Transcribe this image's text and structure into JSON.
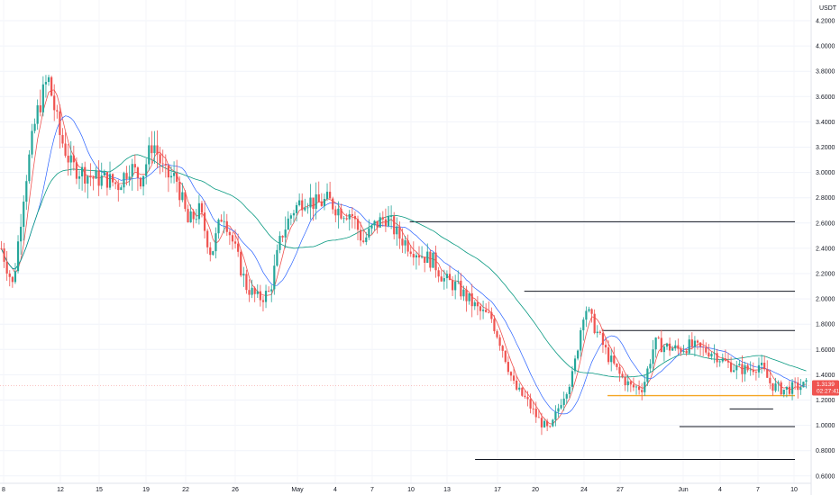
{
  "chart_data": {
    "type": "candlestick",
    "currency_label": "USDT",
    "y_axis": {
      "ticks": [
        "4.2000",
        "4.0000",
        "3.8000",
        "3.6000",
        "3.4000",
        "3.2000",
        "3.0000",
        "2.8000",
        "2.6000",
        "2.4000",
        "2.2000",
        "2.0000",
        "1.8000",
        "1.6000",
        "1.4000",
        "1.2000",
        "1.0000",
        "0.8000",
        "0.6000"
      ],
      "range": [
        0.6,
        4.2
      ]
    },
    "x_axis": {
      "ticks": [
        "8",
        "12",
        "15",
        "19",
        "22",
        "26",
        "May",
        "4",
        "7",
        "10",
        "13",
        "17",
        "20",
        "24",
        "27",
        "Jun",
        "4",
        "7",
        "10"
      ]
    },
    "current_price": {
      "value": 1.3139,
      "label": "1.3139",
      "countdown": "02:27:41"
    },
    "horizontal_levels": [
      {
        "value": 2.61,
        "from_day": 43.3,
        "to_day": 84
      },
      {
        "value": 2.06,
        "from_day": 55.4,
        "to_day": 84
      },
      {
        "value": 1.75,
        "from_day": 63.6,
        "to_day": 84
      },
      {
        "value": 1.13,
        "from_day": 77.1,
        "to_day": 81.7
      },
      {
        "value": 0.99,
        "from_day": 71.8,
        "to_day": 84
      },
      {
        "value": 0.73,
        "from_day": 50.2,
        "to_day": 84
      }
    ],
    "support_level": {
      "value": 1.235,
      "from_day": 64.2,
      "to_day": 84
    },
    "price_path": [
      [
        0,
        2.4
      ],
      [
        1,
        2.1
      ],
      [
        2,
        2.9
      ],
      [
        3,
        3.45
      ],
      [
        4,
        3.75
      ],
      [
        5,
        3.3
      ],
      [
        6,
        3.05
      ],
      [
        7,
        3.0
      ],
      [
        8,
        2.95
      ],
      [
        9,
        2.95
      ],
      [
        10,
        2.9
      ],
      [
        11,
        3.05
      ],
      [
        12,
        2.95
      ],
      [
        13,
        3.25
      ],
      [
        14,
        2.98
      ],
      [
        15,
        2.95
      ],
      [
        16,
        2.6
      ],
      [
        17,
        2.7
      ],
      [
        18,
        2.35
      ],
      [
        19,
        2.7
      ],
      [
        20,
        2.4
      ],
      [
        21,
        2.1
      ],
      [
        22,
        2.0
      ],
      [
        23,
        2.05
      ],
      [
        24,
        2.5
      ],
      [
        25,
        2.7
      ],
      [
        26,
        2.8
      ],
      [
        27,
        2.75
      ],
      [
        28,
        2.78
      ],
      [
        29,
        2.7
      ],
      [
        30,
        2.68
      ],
      [
        31,
        2.45
      ],
      [
        32,
        2.58
      ],
      [
        33,
        2.65
      ],
      [
        34,
        2.5
      ],
      [
        35,
        2.42
      ],
      [
        36,
        2.35
      ],
      [
        37,
        2.3
      ],
      [
        38,
        2.15
      ],
      [
        39,
        2.1
      ],
      [
        40,
        2.0
      ],
      [
        41,
        1.9
      ],
      [
        42,
        1.85
      ],
      [
        43,
        1.6
      ],
      [
        44,
        1.3
      ],
      [
        45,
        1.2
      ],
      [
        46,
        1.05
      ],
      [
        47,
        0.95
      ],
      [
        48,
        1.2
      ],
      [
        49,
        1.4
      ],
      [
        50,
        1.95
      ],
      [
        51,
        1.75
      ],
      [
        52,
        1.55
      ],
      [
        53,
        1.4
      ],
      [
        54,
        1.3
      ],
      [
        55,
        1.3
      ],
      [
        56,
        1.65
      ],
      [
        57,
        1.62
      ],
      [
        58,
        1.6
      ],
      [
        59,
        1.63
      ],
      [
        60,
        1.6
      ],
      [
        61,
        1.58
      ],
      [
        62,
        1.5
      ],
      [
        63,
        1.45
      ],
      [
        64,
        1.44
      ],
      [
        65,
        1.48
      ],
      [
        66,
        1.32
      ],
      [
        67,
        1.28
      ],
      [
        68,
        1.3
      ],
      [
        69,
        1.315
      ]
    ]
  }
}
